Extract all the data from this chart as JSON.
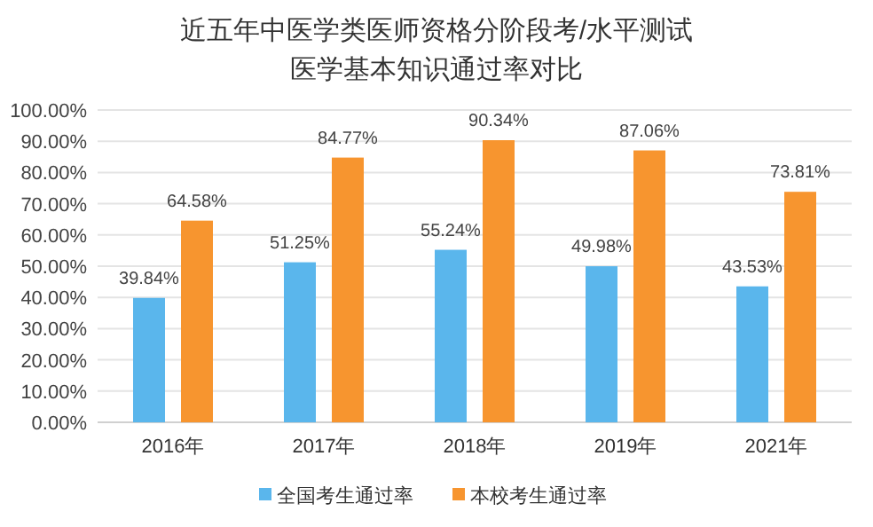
{
  "chart_data": {
    "type": "bar",
    "title": "近五年中医学类医师资格分阶段考/水平测试医学基本知识通过率对比",
    "categories": [
      "2016年",
      "2017年",
      "2018年",
      "2019年",
      "2021年"
    ],
    "series": [
      {
        "name": "全国考生通过率",
        "color": "#5ab6ec",
        "values": [
          39.84,
          51.25,
          55.24,
          49.98,
          43.53
        ],
        "value_labels": [
          "39.84%",
          "51.25%",
          "55.24%",
          "49.98%",
          "43.53%"
        ]
      },
      {
        "name": "本校考生通过率",
        "color": "#f7952f",
        "values": [
          64.58,
          84.77,
          90.34,
          87.06,
          73.81
        ],
        "value_labels": [
          "64.58%",
          "84.77%",
          "90.34%",
          "87.06%",
          "73.81%"
        ]
      }
    ],
    "ylim": [
      0,
      100
    ],
    "yticks": [
      {
        "value": 0,
        "label": "0.00%"
      },
      {
        "value": 10,
        "label": "10.00%"
      },
      {
        "value": 20,
        "label": "20.00%"
      },
      {
        "value": 30,
        "label": "30.00%"
      },
      {
        "value": 40,
        "label": "40.00%"
      },
      {
        "value": 50,
        "label": "50.00%"
      },
      {
        "value": 60,
        "label": "60.00%"
      },
      {
        "value": 70,
        "label": "70.00%"
      },
      {
        "value": 80,
        "label": "80.00%"
      },
      {
        "value": 90,
        "label": "90.00%"
      },
      {
        "value": 100,
        "label": "100.00%"
      }
    ],
    "grid": "y",
    "legend": "bottom"
  }
}
